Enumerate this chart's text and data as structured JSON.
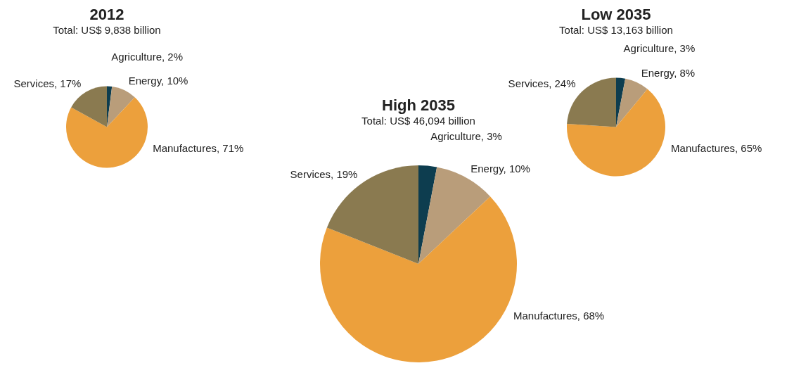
{
  "chart_data": [
    {
      "type": "pie",
      "title": "2012",
      "subtitle": "Total: US$ 9,838 billion",
      "categories": [
        "Agriculture",
        "Energy",
        "Manufactures",
        "Services"
      ],
      "values": [
        2,
        10,
        71,
        17
      ],
      "value_labels": [
        "2%",
        "10%",
        "71%",
        "17%"
      ],
      "colors": [
        "#0d3d4f",
        "#b99d7a",
        "#eca03c",
        "#8a7a50"
      ]
    },
    {
      "type": "pie",
      "title": "High 2035",
      "subtitle": "Total: US$ 46,094 billion",
      "categories": [
        "Agriculture",
        "Energy",
        "Manufactures",
        "Services"
      ],
      "values": [
        3,
        10,
        68,
        19
      ],
      "value_labels": [
        "3%",
        "10%",
        "68%",
        "19%"
      ],
      "colors": [
        "#0d3d4f",
        "#b99d7a",
        "#eca03c",
        "#8a7a50"
      ]
    },
    {
      "type": "pie",
      "title": "Low 2035",
      "subtitle": "Total: US$ 13,163 billion",
      "categories": [
        "Agriculture",
        "Energy",
        "Manufactures",
        "Services"
      ],
      "values": [
        3,
        8,
        65,
        24
      ],
      "value_labels": [
        "3%",
        "8%",
        "65%",
        "24%"
      ],
      "colors": [
        "#0d3d4f",
        "#b99d7a",
        "#eca03c",
        "#8a7a50"
      ]
    }
  ]
}
